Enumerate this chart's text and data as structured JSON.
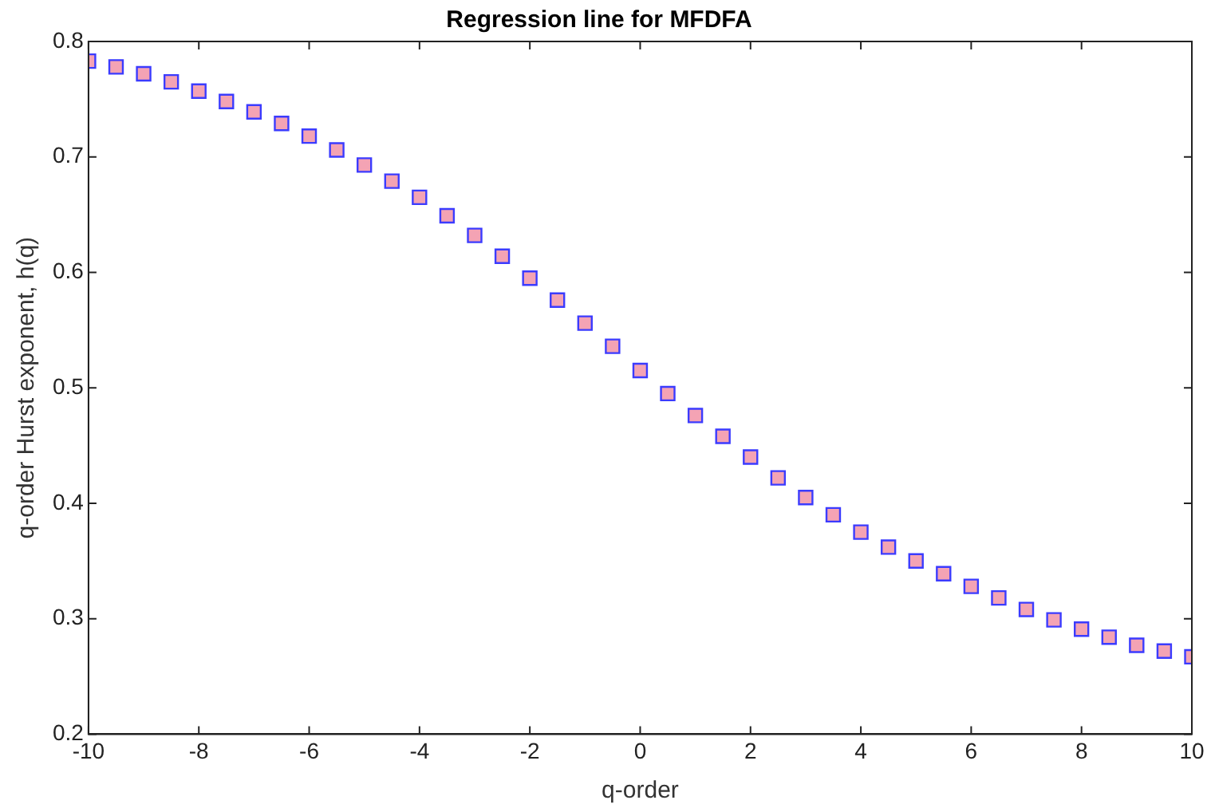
{
  "chart_data": {
    "type": "scatter",
    "title": "Regression line for MFDFA",
    "xlabel": "q-order",
    "ylabel": "q-order Hurst exponent, h(q)",
    "xlim": [
      -10,
      10
    ],
    "xticks": [
      -10,
      -8,
      -6,
      -4,
      -2,
      0,
      2,
      4,
      6,
      8,
      10
    ],
    "ylim": [
      0.2,
      0.8
    ],
    "yticks": [
      0.2,
      0.3,
      0.4,
      0.5,
      0.6,
      0.7,
      0.8
    ],
    "grid": false,
    "legend": false,
    "marker": "square",
    "series": [
      {
        "color": "#f4a3b4",
        "x": [
          -10,
          -9.5,
          -9,
          -8.5,
          -8,
          -7.5,
          -7,
          -6.5,
          -6,
          -5.5,
          -5,
          -4.5,
          -4,
          -3.5,
          -3,
          -2.5,
          -2,
          -1.5,
          -1,
          -0.5,
          0,
          0.5,
          1,
          1.5,
          2,
          2.5,
          3,
          3.5,
          4,
          4.5,
          5,
          5.5,
          6,
          6.5,
          7,
          7.5,
          8,
          8.5,
          9,
          9.5,
          10
        ],
        "values": [
          0.783,
          0.778,
          0.772,
          0.765,
          0.757,
          0.748,
          0.739,
          0.729,
          0.718,
          0.706,
          0.693,
          0.679,
          0.665,
          0.649,
          0.632,
          0.614,
          0.595,
          0.576,
          0.556,
          0.536,
          0.515,
          0.495,
          0.476,
          0.458,
          0.44,
          0.422,
          0.405,
          0.39,
          0.375,
          0.362,
          0.35,
          0.339,
          0.328,
          0.318,
          0.308,
          0.299,
          0.291,
          0.284,
          0.277,
          0.272,
          0.267
        ]
      }
    ]
  }
}
